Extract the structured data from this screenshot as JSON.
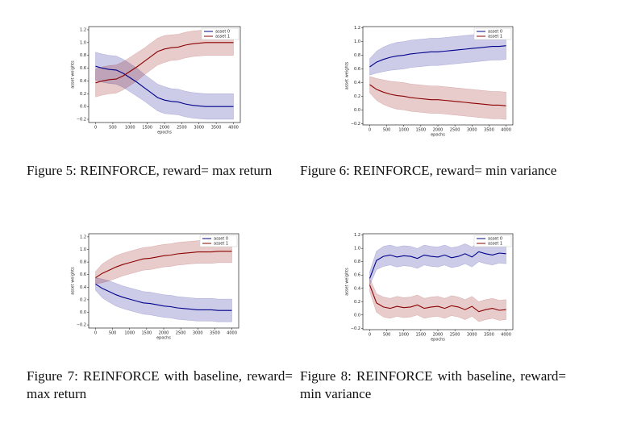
{
  "chart_data": [
    {
      "type": "line",
      "caption": "Figure 5: REINFORCE, reward= max return",
      "xlabel": "epochs",
      "ylabel": "asset weights",
      "x": [
        0,
        200,
        400,
        600,
        800,
        1000,
        1200,
        1400,
        1600,
        1800,
        2000,
        2200,
        2400,
        2600,
        2800,
        3000,
        3200,
        3400,
        3600,
        3800,
        4000
      ],
      "xlim": [
        -200,
        4200
      ],
      "xticks": [
        0,
        500,
        1000,
        1500,
        2000,
        2500,
        3000,
        3500,
        4000
      ],
      "ylim": [
        -0.25,
        1.25
      ],
      "yticks": [
        {
          "value": -0.2,
          "label": "−0.2"
        },
        {
          "value": 0,
          "label": "0.0"
        },
        0.2,
        0.4,
        0.6,
        0.8,
        {
          "value": 1,
          "label": "1.0"
        },
        1.2
      ],
      "legend": "upper right",
      "series": [
        {
          "name": "asset 0",
          "color": "#00008b",
          "values": [
            0.63,
            0.6,
            0.58,
            0.57,
            0.52,
            0.45,
            0.38,
            0.3,
            0.22,
            0.14,
            0.1,
            0.08,
            0.07,
            0.04,
            0.02,
            0.01,
            0,
            0,
            0,
            0,
            0
          ],
          "errors": [
            0.22,
            0.22,
            0.22,
            0.22,
            0.22,
            0.22,
            0.22,
            0.21,
            0.21,
            0.21,
            0.21,
            0.2,
            0.2,
            0.2,
            0.2,
            0.2,
            0.2,
            0.2,
            0.2,
            0.2,
            0.2
          ]
        },
        {
          "name": "asset 1",
          "color": "#8b0000",
          "values": [
            0.37,
            0.4,
            0.42,
            0.43,
            0.48,
            0.55,
            0.62,
            0.7,
            0.78,
            0.86,
            0.9,
            0.92,
            0.93,
            0.96,
            0.98,
            0.99,
            1,
            1,
            1,
            1,
            1
          ],
          "errors": [
            0.22,
            0.22,
            0.22,
            0.22,
            0.22,
            0.22,
            0.22,
            0.21,
            0.21,
            0.21,
            0.21,
            0.2,
            0.2,
            0.2,
            0.2,
            0.2,
            0.2,
            0.2,
            0.2,
            0.2,
            0.2
          ]
        }
      ]
    },
    {
      "type": "line",
      "caption": "Figure 6: REINFORCE, reward= min variance",
      "xlabel": "epochs",
      "ylabel": "asset weights",
      "x": [
        0,
        200,
        400,
        600,
        800,
        1000,
        1200,
        1400,
        1600,
        1800,
        2000,
        2200,
        2400,
        2600,
        2800,
        3000,
        3200,
        3400,
        3600,
        3800,
        4000
      ],
      "xlim": [
        -200,
        4200
      ],
      "xticks": [
        0,
        500,
        1000,
        1500,
        2000,
        2500,
        3000,
        3500,
        4000
      ],
      "ylim": [
        -0.22,
        1.22
      ],
      "yticks": [
        {
          "value": -0.2,
          "label": "−0.2"
        },
        {
          "value": 0,
          "label": "0.0"
        },
        0.2,
        0.4,
        0.6,
        0.8,
        {
          "value": 1,
          "label": "1.0"
        },
        1.2
      ],
      "legend": "upper right",
      "series": [
        {
          "name": "asset 0",
          "color": "#00008b",
          "values": [
            0.63,
            0.7,
            0.74,
            0.77,
            0.79,
            0.8,
            0.82,
            0.83,
            0.84,
            0.85,
            0.85,
            0.86,
            0.87,
            0.88,
            0.89,
            0.9,
            0.91,
            0.92,
            0.93,
            0.93,
            0.94
          ],
          "errors": [
            0.12,
            0.16,
            0.18,
            0.19,
            0.2,
            0.2,
            0.2,
            0.2,
            0.2,
            0.2,
            0.2,
            0.2,
            0.2,
            0.2,
            0.2,
            0.2,
            0.2,
            0.2,
            0.2,
            0.2,
            0.2
          ]
        },
        {
          "name": "asset 1",
          "color": "#8b0000",
          "values": [
            0.37,
            0.3,
            0.26,
            0.23,
            0.21,
            0.2,
            0.18,
            0.17,
            0.16,
            0.15,
            0.15,
            0.14,
            0.13,
            0.12,
            0.11,
            0.1,
            0.09,
            0.08,
            0.07,
            0.07,
            0.06
          ],
          "errors": [
            0.12,
            0.16,
            0.18,
            0.19,
            0.2,
            0.2,
            0.2,
            0.2,
            0.2,
            0.2,
            0.2,
            0.2,
            0.2,
            0.2,
            0.2,
            0.2,
            0.2,
            0.2,
            0.2,
            0.2,
            0.2
          ]
        }
      ]
    },
    {
      "type": "line",
      "caption": "Figure 7: REINFORCE with baseline, reward= max return",
      "xlabel": "epochs",
      "ylabel": "asset weights",
      "x": [
        0,
        200,
        400,
        600,
        800,
        1000,
        1200,
        1400,
        1600,
        1800,
        2000,
        2200,
        2400,
        2600,
        2800,
        3000,
        3200,
        3400,
        3600,
        3800,
        4000
      ],
      "xlim": [
        -200,
        4200
      ],
      "xticks": [
        0,
        500,
        1000,
        1500,
        2000,
        2500,
        3000,
        3500,
        4000
      ],
      "ylim": [
        -0.25,
        1.25
      ],
      "yticks": [
        {
          "value": -0.2,
          "label": "−0.2"
        },
        {
          "value": 0,
          "label": "0.0"
        },
        0.2,
        0.4,
        0.6,
        0.8,
        {
          "value": 1,
          "label": "1.0"
        },
        1.2
      ],
      "legend": "upper right",
      "series": [
        {
          "name": "asset 0",
          "color": "#00008b",
          "values": [
            0.45,
            0.38,
            0.33,
            0.28,
            0.24,
            0.21,
            0.18,
            0.15,
            0.14,
            0.12,
            0.1,
            0.09,
            0.07,
            0.06,
            0.05,
            0.04,
            0.04,
            0.04,
            0.03,
            0.03,
            0.03
          ],
          "errors": [
            0.1,
            0.15,
            0.17,
            0.18,
            0.18,
            0.18,
            0.18,
            0.18,
            0.18,
            0.18,
            0.18,
            0.18,
            0.18,
            0.18,
            0.18,
            0.18,
            0.18,
            0.18,
            0.18,
            0.18,
            0.18
          ]
        },
        {
          "name": "asset 1",
          "color": "#8b0000",
          "values": [
            0.55,
            0.62,
            0.67,
            0.72,
            0.76,
            0.79,
            0.82,
            0.85,
            0.86,
            0.88,
            0.9,
            0.91,
            0.93,
            0.94,
            0.95,
            0.96,
            0.96,
            0.96,
            0.97,
            0.97,
            0.97
          ],
          "errors": [
            0.1,
            0.15,
            0.17,
            0.18,
            0.18,
            0.18,
            0.18,
            0.18,
            0.18,
            0.18,
            0.18,
            0.18,
            0.18,
            0.18,
            0.18,
            0.18,
            0.18,
            0.18,
            0.18,
            0.18,
            0.18
          ]
        }
      ]
    },
    {
      "type": "line",
      "caption": "Figure 8: REINFORCE with baseline, reward= min variance",
      "xlabel": "epochs",
      "ylabel": "asset weights",
      "x": [
        0,
        200,
        400,
        600,
        800,
        1000,
        1200,
        1400,
        1600,
        1800,
        2000,
        2200,
        2400,
        2600,
        2800,
        3000,
        3200,
        3400,
        3600,
        3800,
        4000
      ],
      "xlim": [
        -200,
        4200
      ],
      "xticks": [
        0,
        500,
        1000,
        1500,
        2000,
        2500,
        3000,
        3500,
        4000
      ],
      "ylim": [
        -0.22,
        1.22
      ],
      "yticks": [
        {
          "value": -0.2,
          "label": "−0.2"
        },
        {
          "value": 0,
          "label": "0.0"
        },
        0.2,
        0.4,
        0.6,
        0.8,
        {
          "value": 1,
          "label": "1.0"
        },
        1.2
      ],
      "legend": "upper right",
      "series": [
        {
          "name": "asset 0",
          "color": "#00008b",
          "values": [
            0.55,
            0.82,
            0.88,
            0.9,
            0.87,
            0.89,
            0.88,
            0.85,
            0.9,
            0.88,
            0.87,
            0.9,
            0.86,
            0.88,
            0.92,
            0.87,
            0.95,
            0.92,
            0.9,
            0.93,
            0.92
          ],
          "errors": [
            0.1,
            0.14,
            0.15,
            0.15,
            0.15,
            0.15,
            0.15,
            0.15,
            0.15,
            0.15,
            0.15,
            0.15,
            0.15,
            0.15,
            0.15,
            0.15,
            0.15,
            0.15,
            0.15,
            0.15,
            0.15
          ]
        },
        {
          "name": "asset 1",
          "color": "#8b0000",
          "values": [
            0.45,
            0.18,
            0.12,
            0.1,
            0.13,
            0.11,
            0.12,
            0.15,
            0.1,
            0.12,
            0.13,
            0.1,
            0.14,
            0.12,
            0.08,
            0.13,
            0.05,
            0.08,
            0.1,
            0.07,
            0.08
          ],
          "errors": [
            0.1,
            0.14,
            0.15,
            0.15,
            0.15,
            0.15,
            0.15,
            0.15,
            0.15,
            0.15,
            0.15,
            0.15,
            0.15,
            0.15,
            0.15,
            0.15,
            0.15,
            0.15,
            0.15,
            0.15,
            0.15
          ]
        }
      ]
    }
  ]
}
